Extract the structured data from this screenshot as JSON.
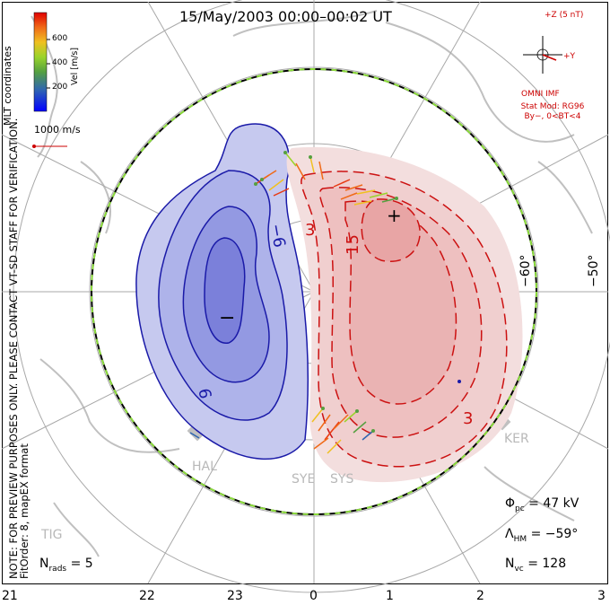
{
  "title": "15/May/2003 00:00–00:02 UT",
  "coord_system": "MLT coordinates",
  "note": "NOTE: FOR PREVIEW PURPOSES ONLY. PLEASE CONTACT VT-SD STAFF FOR VERIFICATION.",
  "fit_order": "FitOrder: 8, mapEX format",
  "velocity_scale": {
    "label": "Vel [m/s]",
    "ticks": [
      "600",
      "400",
      "200"
    ],
    "colors": [
      "#0000ff",
      "#2b5dbd",
      "#4a8f6a",
      "#7bd23b",
      "#c8e02a",
      "#f4b01b",
      "#f07018",
      "#e83a12",
      "#e00000"
    ]
  },
  "reference_vector": {
    "label": "1000 m/s"
  },
  "imf": {
    "z_label": "+Z (5 nT)",
    "y_label": "+Y",
    "source": "OMNI IMF",
    "stat_model": "Stat Mod: RG96",
    "condition": "By−, 0<BT<4"
  },
  "stats": {
    "phi_pc": {
      "symbol": "Φ",
      "sub": "pc",
      "value": "= 47 kV"
    },
    "lambda_hm": {
      "symbol": "Λ",
      "sub": "HM",
      "value": "= −59°"
    },
    "n_vc": {
      "symbol": "N",
      "sub": "vc",
      "value": "= 128"
    },
    "n_rads": {
      "symbol": "N",
      "sub": "rads",
      "value": "= 5"
    }
  },
  "mlt_ticks": [
    "21",
    "22",
    "23",
    "0",
    "1",
    "2",
    "3"
  ],
  "lat_labels": [
    "−60°",
    "−50°"
  ],
  "stations": [
    "KER",
    "HAL",
    "SYE",
    "SYS",
    "TIG"
  ],
  "contours": {
    "negative_labels": [
      "−6",
      "6"
    ],
    "positive_labels": [
      "3",
      "15",
      "3"
    ],
    "min_marker": "−",
    "max_marker": "+",
    "negative_color": "#1a1aa8",
    "positive_color": "#cc1111"
  }
}
